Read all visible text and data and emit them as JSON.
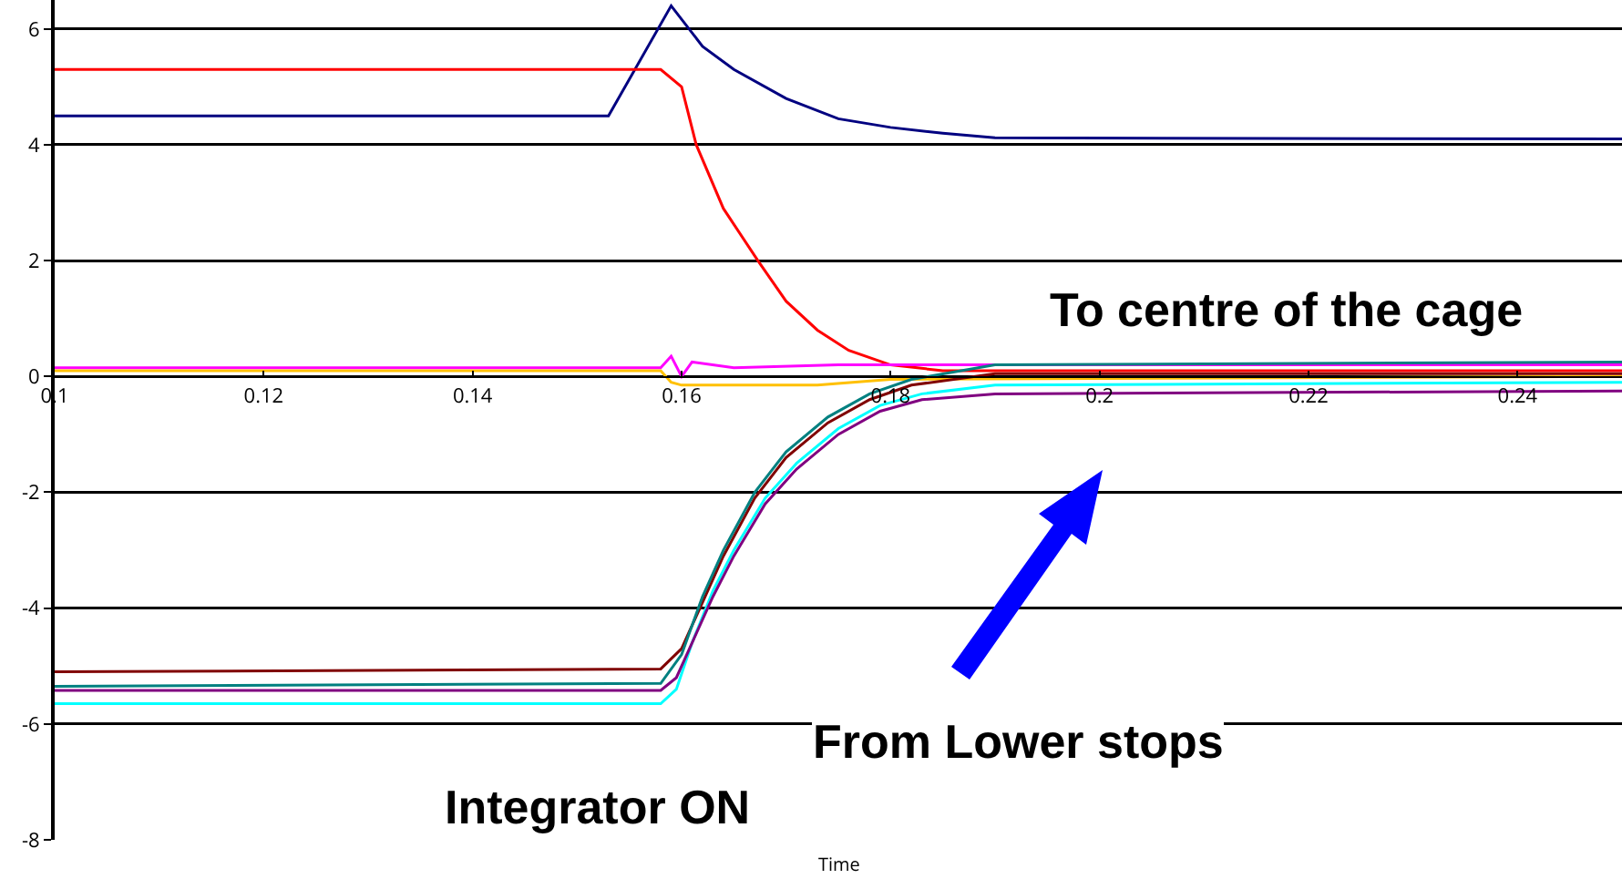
{
  "chart_data": {
    "type": "line",
    "xlabel": "Time",
    "xlim": [
      0.1,
      0.25
    ],
    "xticks": [
      {
        "value": 0.1,
        "label": "0.1"
      },
      0.12,
      0.14,
      0.16,
      0.18,
      {
        "value": 0.2,
        "label": "0.2"
      },
      0.22,
      0.24
    ],
    "ylim": [
      -8,
      6.5
    ],
    "yticks": [
      -8,
      -6,
      -4,
      -2,
      0,
      2,
      4,
      6
    ],
    "grid": "y",
    "marker": "none",
    "series": [
      {
        "color": "#000080",
        "x": [
          0.1,
          0.153,
          0.159,
          0.162,
          0.165,
          0.17,
          0.175,
          0.18,
          0.185,
          0.19,
          0.25
        ],
        "values": [
          4.5,
          4.5,
          6.4,
          5.7,
          5.3,
          4.8,
          4.45,
          4.3,
          4.2,
          4.12,
          4.1
        ]
      },
      {
        "color": "#ff0000",
        "x": [
          0.1,
          0.158,
          0.16,
          0.1614,
          0.164,
          0.1673,
          0.17,
          0.173,
          0.176,
          0.18,
          0.185,
          0.25
        ],
        "values": [
          5.3,
          5.3,
          5.0,
          4.0,
          2.9,
          2.0,
          1.3,
          0.8,
          0.45,
          0.2,
          0.1,
          0.1
        ]
      },
      {
        "color": "#ff00ff",
        "x": [
          0.1,
          0.158,
          0.159,
          0.16,
          0.161,
          0.165,
          0.175,
          0.25
        ],
        "values": [
          0.15,
          0.15,
          0.35,
          0.0,
          0.25,
          0.15,
          0.2,
          0.2
        ]
      },
      {
        "color": "#ffc000",
        "x": [
          0.1,
          0.158,
          0.159,
          0.16,
          0.173,
          0.18,
          0.25
        ],
        "values": [
          0.1,
          0.1,
          -0.1,
          -0.15,
          -0.15,
          -0.05,
          0.0
        ]
      },
      {
        "color": "#800000",
        "x": [
          0.1,
          0.158,
          0.16,
          0.162,
          0.164,
          0.167,
          0.17,
          0.174,
          0.178,
          0.182,
          0.19,
          0.25
        ],
        "values": [
          -5.1,
          -5.05,
          -4.7,
          -3.9,
          -3.1,
          -2.1,
          -1.4,
          -0.8,
          -0.4,
          -0.15,
          0.05,
          0.05
        ]
      },
      {
        "color": "#008080",
        "x": [
          0.1,
          0.158,
          0.16,
          0.162,
          0.164,
          0.167,
          0.17,
          0.174,
          0.178,
          0.182,
          0.19,
          0.25
        ],
        "values": [
          -5.35,
          -5.3,
          -4.8,
          -3.8,
          -3.0,
          -2.0,
          -1.3,
          -0.7,
          -0.3,
          -0.05,
          0.2,
          0.25
        ]
      },
      {
        "color": "#00ffff",
        "x": [
          0.1,
          0.158,
          0.1595,
          0.161,
          0.163,
          0.165,
          0.168,
          0.171,
          0.175,
          0.179,
          0.183,
          0.19,
          0.25
        ],
        "values": [
          -5.65,
          -5.65,
          -5.4,
          -4.6,
          -3.7,
          -3.0,
          -2.1,
          -1.5,
          -0.9,
          -0.5,
          -0.3,
          -0.15,
          -0.1
        ]
      },
      {
        "color": "#800080",
        "x": [
          0.1,
          0.158,
          0.1595,
          0.161,
          0.163,
          0.165,
          0.168,
          0.171,
          0.175,
          0.179,
          0.183,
          0.19,
          0.25
        ],
        "values": [
          -5.42,
          -5.42,
          -5.2,
          -4.6,
          -3.8,
          -3.1,
          -2.2,
          -1.6,
          -1.0,
          -0.6,
          -0.4,
          -0.3,
          -0.25
        ]
      }
    ],
    "annotations": [
      "To centre of the cage",
      "From Lower stops",
      "Integrator ON"
    ]
  }
}
